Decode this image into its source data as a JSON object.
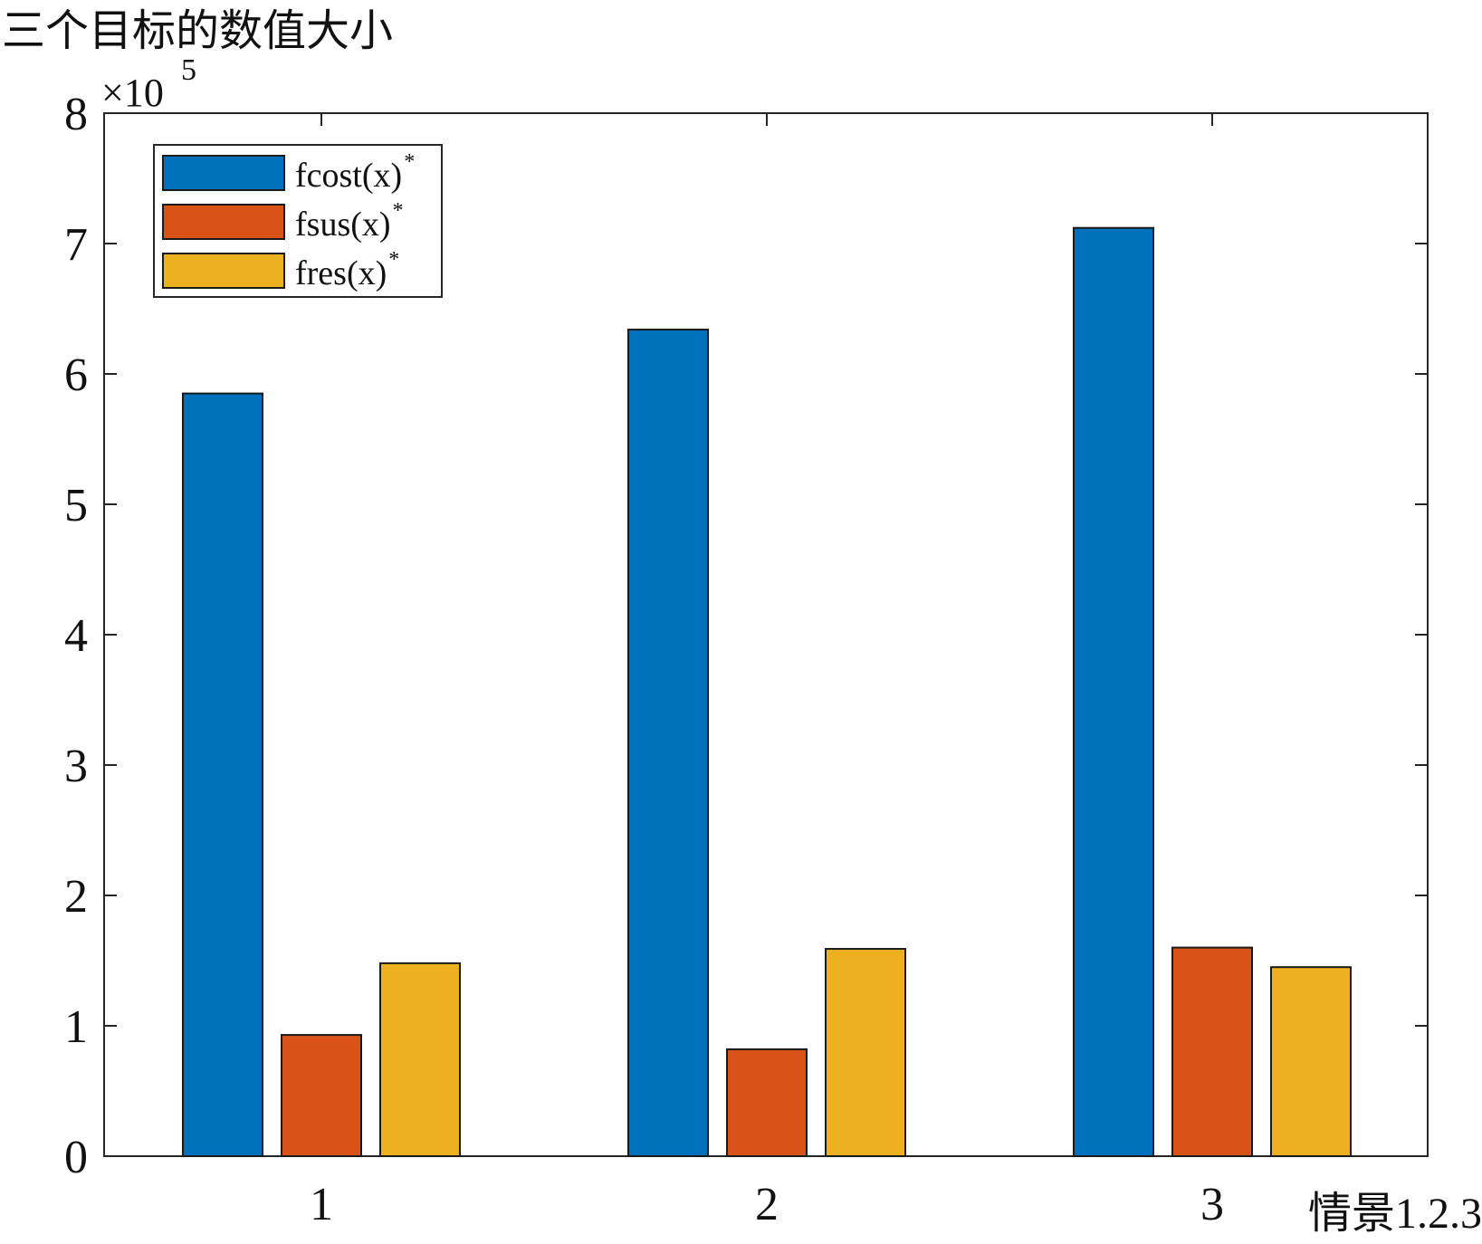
{
  "chart_data": {
    "type": "bar",
    "title": "三个目标的数值大小",
    "xlabel": "情景1.2.3",
    "ylabel": "",
    "y_exponent_label": "×10",
    "y_exponent_power": "5",
    "categories": [
      "1",
      "2",
      "3"
    ],
    "series": [
      {
        "name": "fcost(x)",
        "name_sup": "*",
        "color": "#0072BD",
        "values": [
          585000,
          634000,
          712000
        ]
      },
      {
        "name": "fsus(x)",
        "name_sup": "*",
        "color": "#D95319",
        "values": [
          93000,
          82000,
          160000
        ]
      },
      {
        "name": "fres(x)",
        "name_sup": "*",
        "color": "#EDB120",
        "values": [
          148000,
          159000,
          145000
        ]
      }
    ],
    "ylim": [
      0,
      800000
    ],
    "yticks": [
      0,
      100000,
      200000,
      300000,
      400000,
      500000,
      600000,
      700000,
      800000
    ],
    "ytick_labels": [
      "0",
      "1",
      "2",
      "3",
      "4",
      "5",
      "6",
      "7",
      "8"
    ],
    "legend_position": "top-left",
    "grid": false
  }
}
